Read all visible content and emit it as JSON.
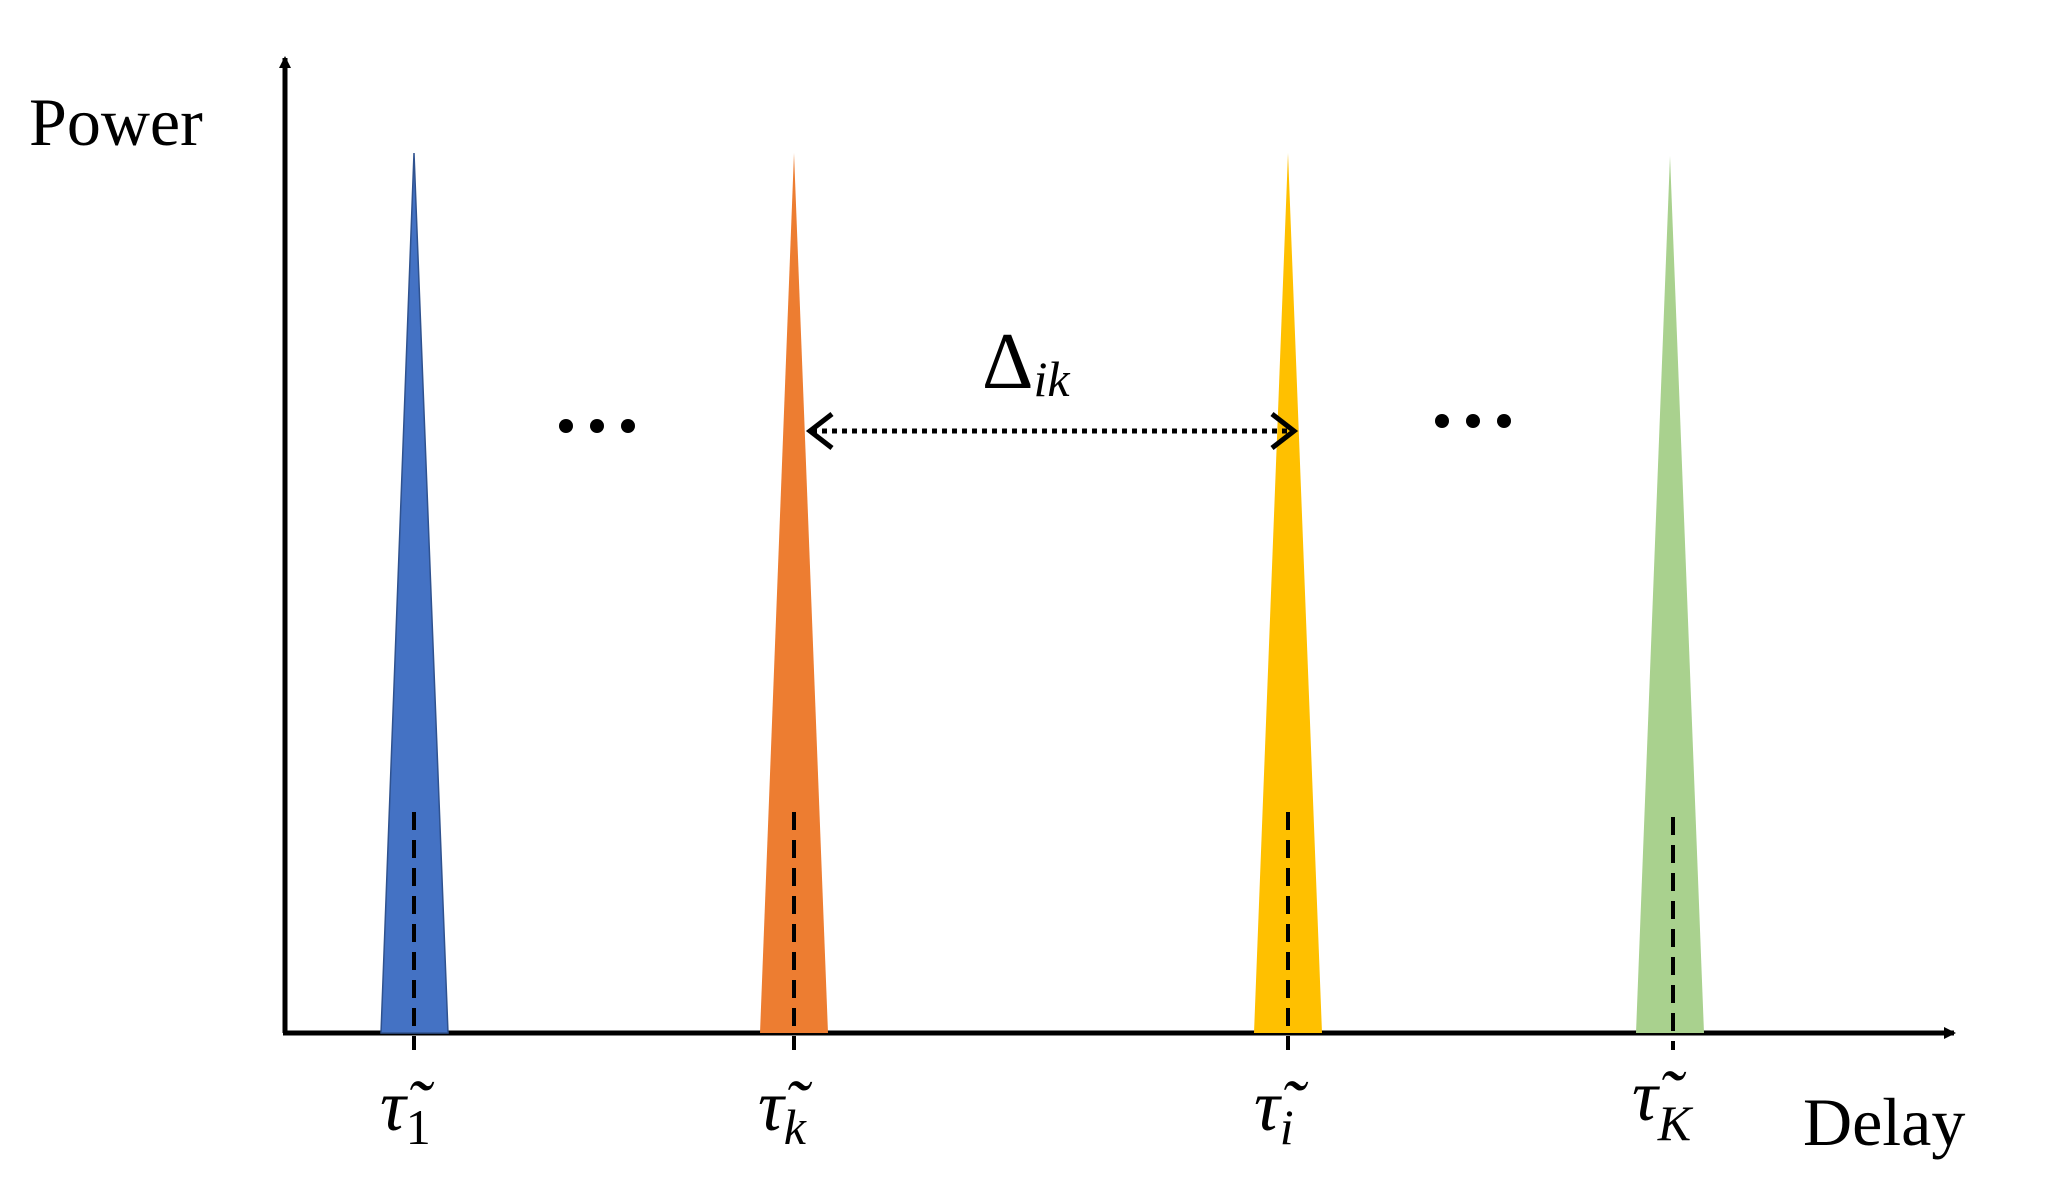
{
  "axes": {
    "y_label": "Power",
    "x_label": "Delay"
  },
  "peaks": [
    {
      "symbol": "τ̃",
      "subscript": "1"
    },
    {
      "symbol": "τ̃",
      "subscript": "k"
    },
    {
      "symbol": "τ̃",
      "subscript": "i"
    },
    {
      "symbol": "τ̃",
      "subscript": "K"
    }
  ],
  "separation": {
    "symbol": "Δ",
    "subscript": "ik"
  }
}
